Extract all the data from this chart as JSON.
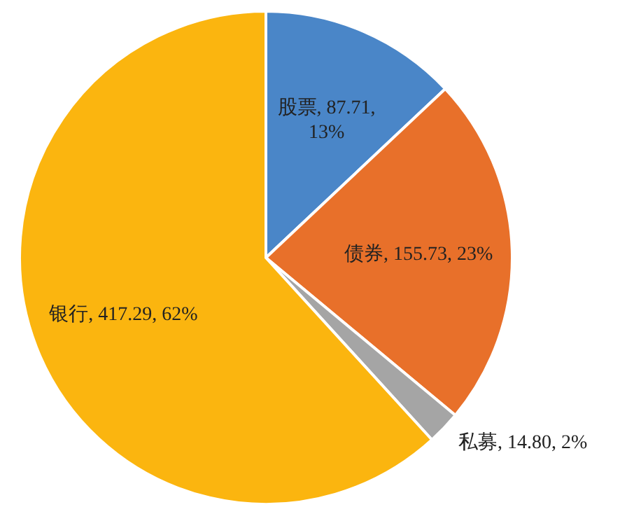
{
  "chart_data": {
    "type": "pie",
    "categories": [
      "股票",
      "债券",
      "私募",
      "银行"
    ],
    "values": [
      87.71,
      155.73,
      14.8,
      417.29
    ],
    "colors": [
      "#4a86c8",
      "#e8702a",
      "#a5a5a5",
      "#fbb50f"
    ],
    "value_labels": [
      "87.71, 13%",
      "155.73, 23%",
      "14.80, 2%",
      "417.29, 62%"
    ],
    "legend": false
  }
}
